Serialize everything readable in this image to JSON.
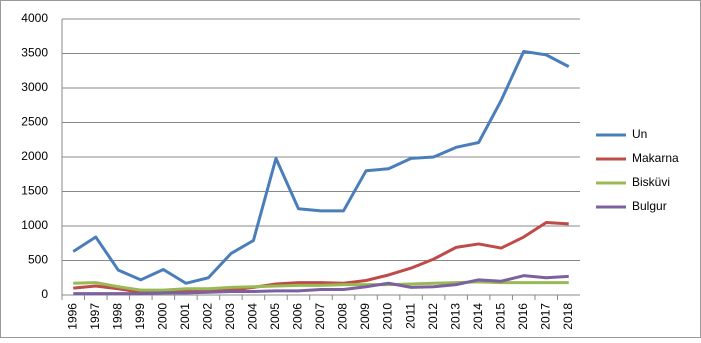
{
  "chart_data": {
    "type": "line",
    "categories": [
      "1996",
      "1997",
      "1998",
      "1999",
      "2000",
      "2001",
      "2002",
      "2003",
      "2004",
      "2005",
      "2006",
      "2007",
      "2008",
      "2009",
      "2010",
      "2011",
      "2012",
      "2013",
      "2014",
      "2015",
      "2016",
      "2017",
      "2018"
    ],
    "series": [
      {
        "name": "Un",
        "color": "#4a7ebb",
        "values": [
          630,
          840,
          360,
          220,
          370,
          170,
          250,
          600,
          790,
          1980,
          1250,
          1220,
          1220,
          1800,
          1830,
          1980,
          2000,
          2140,
          2210,
          2820,
          3530,
          3480,
          3310
        ]
      },
      {
        "name": "Makarna",
        "color": "#be4b48",
        "values": [
          100,
          130,
          90,
          40,
          40,
          50,
          50,
          70,
          110,
          160,
          180,
          180,
          170,
          210,
          290,
          390,
          520,
          690,
          740,
          680,
          840,
          1050,
          1030
        ]
      },
      {
        "name": "Bisküvi",
        "color": "#98b954",
        "values": [
          170,
          180,
          120,
          70,
          70,
          90,
          90,
          110,
          120,
          130,
          140,
          140,
          150,
          150,
          150,
          160,
          170,
          180,
          190,
          180,
          180,
          180,
          180
        ]
      },
      {
        "name": "Bulgur",
        "color": "#7d60a0",
        "values": [
          20,
          20,
          20,
          20,
          30,
          30,
          40,
          50,
          50,
          60,
          60,
          80,
          80,
          120,
          170,
          110,
          120,
          150,
          220,
          200,
          280,
          250,
          270
        ]
      }
    ],
    "ylim": [
      0,
      4000
    ],
    "yticks": [
      0,
      500,
      1000,
      1500,
      2000,
      2500,
      3000,
      3500,
      4000
    ],
    "grid": true,
    "legend": "right"
  }
}
